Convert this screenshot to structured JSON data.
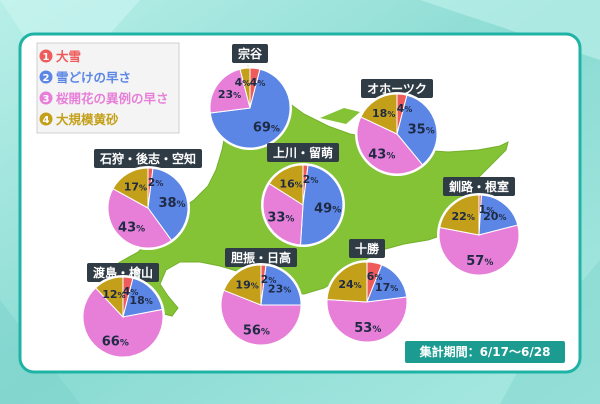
{
  "chart_data": {
    "type": "pie",
    "legend": [
      {
        "num": "1",
        "label": "大雪",
        "color": "#ef5b5b"
      },
      {
        "num": "2",
        "label": "雪どけの早さ",
        "color": "#5b86e5"
      },
      {
        "num": "3",
        "label": "桜開花の異例の早さ",
        "color": "#e77fd8"
      },
      {
        "num": "4",
        "label": "大規模黄砂",
        "color": "#c4a01a"
      }
    ],
    "period": "集計期間：6/17～6/28",
    "value_suffix": "%",
    "regions": [
      {
        "name": "宗谷",
        "values": [
          4,
          69,
          23,
          4
        ]
      },
      {
        "name": "オホーツク",
        "values": [
          4,
          35,
          43,
          18
        ]
      },
      {
        "name": "上川・留萌",
        "values": [
          2,
          49,
          33,
          16
        ]
      },
      {
        "name": "石狩・後志・空知",
        "values": [
          2,
          38,
          43,
          17
        ]
      },
      {
        "name": "釧路・根室",
        "values": [
          1,
          20,
          57,
          22
        ]
      },
      {
        "name": "十勝",
        "values": [
          6,
          17,
          53,
          24
        ]
      },
      {
        "name": "胆振・日高",
        "values": [
          2,
          23,
          56,
          19
        ]
      },
      {
        "name": "渡島・檜山",
        "values": [
          4,
          18,
          66,
          12
        ]
      }
    ]
  }
}
